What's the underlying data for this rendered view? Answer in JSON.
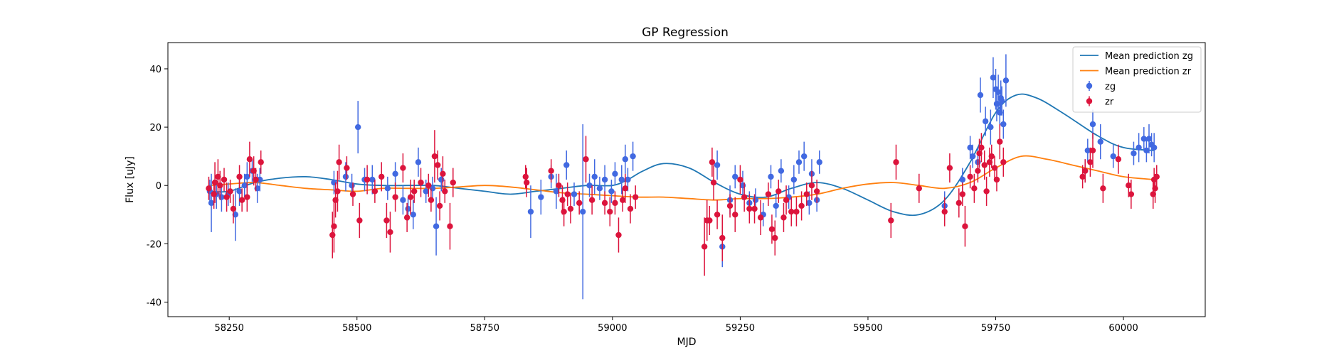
{
  "chart_data": {
    "type": "scatter",
    "title": "GP Regression",
    "xlabel": "MJD",
    "ylabel": "Flux [uJy]",
    "xlim": [
      58130,
      60160
    ],
    "ylim": [
      -45,
      49
    ],
    "xticks": [
      58250,
      58500,
      58750,
      59000,
      59250,
      59500,
      59750,
      60000
    ],
    "yticks": [
      -40,
      -20,
      0,
      20,
      40
    ],
    "grid": false,
    "legend_position": "top-right",
    "legend": [
      {
        "label": "Mean prediction zg",
        "type": "line",
        "color": "#1f77b4"
      },
      {
        "label": "Mean prediction zr",
        "type": "line",
        "color": "#ff7f0e"
      },
      {
        "label": "zg",
        "type": "errorbar",
        "color": "#4169e1"
      },
      {
        "label": "zr",
        "type": "errorbar",
        "color": "#dc143c"
      }
    ],
    "lines": [
      {
        "name": "Mean prediction zg",
        "color": "#1f77b4",
        "x": [
          58210,
          58250,
          58300,
          58350,
          58400,
          58450,
          58500,
          58550,
          58600,
          58650,
          58700,
          58750,
          58800,
          58850,
          58900,
          58950,
          59000,
          59030,
          59060,
          59100,
          59150,
          59200,
          59250,
          59300,
          59350,
          59400,
          59450,
          59500,
          59550,
          59600,
          59650,
          59700,
          59750,
          59790,
          59830,
          59880,
          59950,
          60000,
          60060
        ],
        "y": [
          -2,
          -2,
          1,
          2.5,
          3,
          2,
          0.5,
          0,
          0,
          0,
          -1,
          -2,
          -3,
          -2,
          -1,
          0,
          0,
          2,
          5,
          7.5,
          6,
          1,
          -3,
          -4,
          -1,
          1,
          -1,
          -5,
          -9,
          -10,
          -5,
          8,
          25,
          31,
          30,
          25,
          17,
          13,
          12
        ]
      },
      {
        "name": "Mean prediction zr",
        "color": "#ff7f0e",
        "x": [
          58210,
          58250,
          58300,
          58350,
          58400,
          58450,
          58500,
          58550,
          58600,
          58650,
          58700,
          58750,
          58800,
          58850,
          58900,
          58950,
          59000,
          59050,
          59100,
          59150,
          59200,
          59250,
          59300,
          59350,
          59400,
          59450,
          59500,
          59550,
          59600,
          59650,
          59700,
          59750,
          59800,
          59850,
          59900,
          59950,
          60000,
          60060
        ],
        "y": [
          0,
          0.5,
          1,
          0,
          -1,
          -1.5,
          -2,
          -1,
          -1,
          -1,
          -0.5,
          0,
          -0.5,
          -1.5,
          -2.5,
          -3,
          -3.5,
          -4,
          -4,
          -4.5,
          -5,
          -4.5,
          -4.5,
          -4,
          -3,
          -1,
          0.5,
          1,
          0,
          -1,
          1,
          6,
          10,
          9,
          7,
          5,
          3,
          2
        ]
      }
    ],
    "series": [
      {
        "name": "zg",
        "color": "#4169e1",
        "points": [
          [
            58212,
            -2,
            4
          ],
          [
            58215,
            -6,
            10
          ],
          [
            58225,
            -3,
            5
          ],
          [
            58235,
            -4,
            5
          ],
          [
            58248,
            -3,
            4
          ],
          [
            58262,
            -10,
            9
          ],
          [
            58270,
            -2,
            5
          ],
          [
            58280,
            0,
            4
          ],
          [
            58285,
            3,
            5
          ],
          [
            58295,
            5,
            4
          ],
          [
            58305,
            -1,
            5
          ],
          [
            58310,
            2,
            4
          ],
          [
            58455,
            1,
            4
          ],
          [
            58478,
            3,
            5
          ],
          [
            58490,
            0,
            4
          ],
          [
            58502,
            20,
            9
          ],
          [
            58515,
            2,
            4
          ],
          [
            58530,
            2,
            5
          ],
          [
            58560,
            -1,
            4
          ],
          [
            58575,
            4,
            4
          ],
          [
            58590,
            -5,
            5
          ],
          [
            58600,
            -8,
            4
          ],
          [
            58610,
            -10,
            5
          ],
          [
            58620,
            8,
            5
          ],
          [
            58635,
            -2,
            4
          ],
          [
            58648,
            -1,
            4
          ],
          [
            58655,
            -14,
            10
          ],
          [
            58665,
            2,
            4
          ],
          [
            58840,
            -9,
            9
          ],
          [
            58860,
            -4,
            6
          ],
          [
            58880,
            3,
            4
          ],
          [
            58890,
            -2,
            6
          ],
          [
            58910,
            7,
            5
          ],
          [
            58925,
            -3,
            4
          ],
          [
            58942,
            -9,
            30
          ],
          [
            58955,
            0,
            4
          ],
          [
            58965,
            3,
            6
          ],
          [
            58975,
            -1,
            4
          ],
          [
            58985,
            2,
            5
          ],
          [
            58998,
            -2,
            4
          ],
          [
            59005,
            4,
            4
          ],
          [
            59018,
            2,
            5
          ],
          [
            59025,
            9,
            5
          ],
          [
            59030,
            2,
            4
          ],
          [
            59040,
            10,
            5
          ],
          [
            59205,
            7,
            5
          ],
          [
            59215,
            -21,
            7
          ],
          [
            59230,
            -5,
            5
          ],
          [
            59240,
            3,
            4
          ],
          [
            59255,
            0,
            5
          ],
          [
            59268,
            -6,
            4
          ],
          [
            59280,
            -5,
            4
          ],
          [
            59295,
            -10,
            4
          ],
          [
            59310,
            3,
            4
          ],
          [
            59320,
            -7,
            4
          ],
          [
            59330,
            5,
            4
          ],
          [
            59345,
            -4,
            4
          ],
          [
            59355,
            2,
            5
          ],
          [
            59365,
            8,
            4
          ],
          [
            59375,
            10,
            5
          ],
          [
            59385,
            -6,
            4
          ],
          [
            59390,
            4,
            5
          ],
          [
            59400,
            -5,
            4
          ],
          [
            59405,
            8,
            4
          ],
          [
            59650,
            -7,
            5
          ],
          [
            59685,
            2,
            4
          ],
          [
            59700,
            13,
            4
          ],
          [
            59705,
            10,
            4
          ],
          [
            59715,
            8,
            5
          ],
          [
            59720,
            31,
            6
          ],
          [
            59730,
            22,
            5
          ],
          [
            59740,
            20,
            6
          ],
          [
            59745,
            37,
            7
          ],
          [
            59750,
            33,
            7
          ],
          [
            59752,
            28,
            6
          ],
          [
            59755,
            32,
            6
          ],
          [
            59758,
            25,
            6
          ],
          [
            59760,
            30,
            6
          ],
          [
            59762,
            29,
            5
          ],
          [
            59765,
            21,
            5
          ],
          [
            59770,
            36,
            9
          ],
          [
            59925,
            5,
            4
          ],
          [
            59930,
            12,
            4
          ],
          [
            59940,
            21,
            5
          ],
          [
            59955,
            15,
            6
          ],
          [
            59980,
            10,
            4
          ],
          [
            60020,
            11,
            4
          ],
          [
            60030,
            13,
            5
          ],
          [
            60040,
            16,
            4
          ],
          [
            60045,
            12,
            4
          ],
          [
            60050,
            16,
            5
          ],
          [
            60055,
            14,
            4
          ],
          [
            60060,
            13,
            5
          ]
        ]
      },
      {
        "name": "zr",
        "color": "#dc143c",
        "points": [
          [
            58210,
            -1,
            4
          ],
          [
            58220,
            -3,
            5
          ],
          [
            58222,
            1,
            7
          ],
          [
            58228,
            3,
            6
          ],
          [
            58232,
            0,
            5
          ],
          [
            58240,
            2,
            4
          ],
          [
            58245,
            -4,
            5
          ],
          [
            58252,
            -2,
            4
          ],
          [
            58258,
            -8,
            5
          ],
          [
            58270,
            3,
            4
          ],
          [
            58275,
            -5,
            4
          ],
          [
            58285,
            -4,
            5
          ],
          [
            58290,
            9,
            6
          ],
          [
            58298,
            5,
            5
          ],
          [
            58302,
            2,
            4
          ],
          [
            58312,
            8,
            4
          ],
          [
            58452,
            -17,
            8
          ],
          [
            58455,
            -14,
            9
          ],
          [
            58458,
            -5,
            6
          ],
          [
            58462,
            -2,
            7
          ],
          [
            58465,
            8,
            6
          ],
          [
            58480,
            6,
            4
          ],
          [
            58492,
            -3,
            4
          ],
          [
            58505,
            -12,
            6
          ],
          [
            58520,
            2,
            5
          ],
          [
            58535,
            -2,
            4
          ],
          [
            58548,
            3,
            5
          ],
          [
            58558,
            -12,
            6
          ],
          [
            58565,
            -16,
            7
          ],
          [
            58575,
            -4,
            5
          ],
          [
            58590,
            6,
            5
          ],
          [
            58598,
            -11,
            5
          ],
          [
            58605,
            -4,
            6
          ],
          [
            58612,
            -2,
            4
          ],
          [
            58625,
            1,
            5
          ],
          [
            58640,
            0,
            4
          ],
          [
            58645,
            -5,
            4
          ],
          [
            58652,
            10,
            9
          ],
          [
            58658,
            7,
            5
          ],
          [
            58662,
            -7,
            5
          ],
          [
            58668,
            4,
            6
          ],
          [
            58672,
            -2,
            4
          ],
          [
            58682,
            -14,
            8
          ],
          [
            58688,
            1,
            5
          ],
          [
            58830,
            3,
            4
          ],
          [
            58832,
            1,
            5
          ],
          [
            58880,
            5,
            4
          ],
          [
            58895,
            0,
            4
          ],
          [
            58902,
            -5,
            5
          ],
          [
            58905,
            -9,
            5
          ],
          [
            58912,
            -3,
            4
          ],
          [
            58918,
            -8,
            5
          ],
          [
            58935,
            -6,
            4
          ],
          [
            58948,
            9,
            8
          ],
          [
            58960,
            -5,
            5
          ],
          [
            58985,
            -6,
            4
          ],
          [
            58995,
            -9,
            5
          ],
          [
            59005,
            -6,
            4
          ],
          [
            59012,
            -17,
            6
          ],
          [
            59020,
            -5,
            4
          ],
          [
            59025,
            -1,
            5
          ],
          [
            59035,
            -8,
            5
          ],
          [
            59045,
            -4,
            4
          ],
          [
            59180,
            -21,
            10
          ],
          [
            59185,
            -12,
            7
          ],
          [
            59190,
            -12,
            5
          ],
          [
            59195,
            8,
            5
          ],
          [
            59198,
            1,
            6
          ],
          [
            59205,
            -10,
            5
          ],
          [
            59215,
            -18,
            8
          ],
          [
            59230,
            -7,
            4
          ],
          [
            59240,
            -10,
            6
          ],
          [
            59250,
            2,
            5
          ],
          [
            59258,
            -4,
            5
          ],
          [
            59268,
            -8,
            5
          ],
          [
            59278,
            -8,
            5
          ],
          [
            59290,
            -11,
            6
          ],
          [
            59305,
            -3,
            4
          ],
          [
            59312,
            -15,
            5
          ],
          [
            59318,
            -18,
            6
          ],
          [
            59325,
            -2,
            4
          ],
          [
            59335,
            -11,
            5
          ],
          [
            59340,
            -5,
            5
          ],
          [
            59350,
            -9,
            5
          ],
          [
            59360,
            -9,
            5
          ],
          [
            59370,
            -7,
            5
          ],
          [
            59380,
            -3,
            4
          ],
          [
            59390,
            0,
            5
          ],
          [
            59400,
            -2,
            4
          ],
          [
            59545,
            -12,
            6
          ],
          [
            59555,
            8,
            6
          ],
          [
            59600,
            -1,
            5
          ],
          [
            59650,
            -9,
            5
          ],
          [
            59660,
            6,
            5
          ],
          [
            59678,
            -6,
            5
          ],
          [
            59685,
            -3,
            4
          ],
          [
            59690,
            -14,
            7
          ],
          [
            59700,
            3,
            4
          ],
          [
            59708,
            -1,
            5
          ],
          [
            59715,
            5,
            4
          ],
          [
            59718,
            11,
            5
          ],
          [
            59722,
            13,
            5
          ],
          [
            59728,
            7,
            5
          ],
          [
            59732,
            -2,
            5
          ],
          [
            59738,
            8,
            5
          ],
          [
            59742,
            10,
            4
          ],
          [
            59748,
            6,
            4
          ],
          [
            59752,
            2,
            4
          ],
          [
            59758,
            15,
            6
          ],
          [
            59765,
            8,
            5
          ],
          [
            59920,
            3,
            4
          ],
          [
            59925,
            5,
            4
          ],
          [
            59935,
            8,
            5
          ],
          [
            59940,
            12,
            6
          ],
          [
            59960,
            -1,
            5
          ],
          [
            59990,
            9,
            5
          ],
          [
            60010,
            0,
            4
          ],
          [
            60015,
            -3,
            5
          ],
          [
            60060,
            2,
            4
          ],
          [
            60062,
            -1,
            5
          ],
          [
            60058,
            -3,
            5
          ],
          [
            60065,
            3,
            4
          ]
        ]
      }
    ]
  }
}
